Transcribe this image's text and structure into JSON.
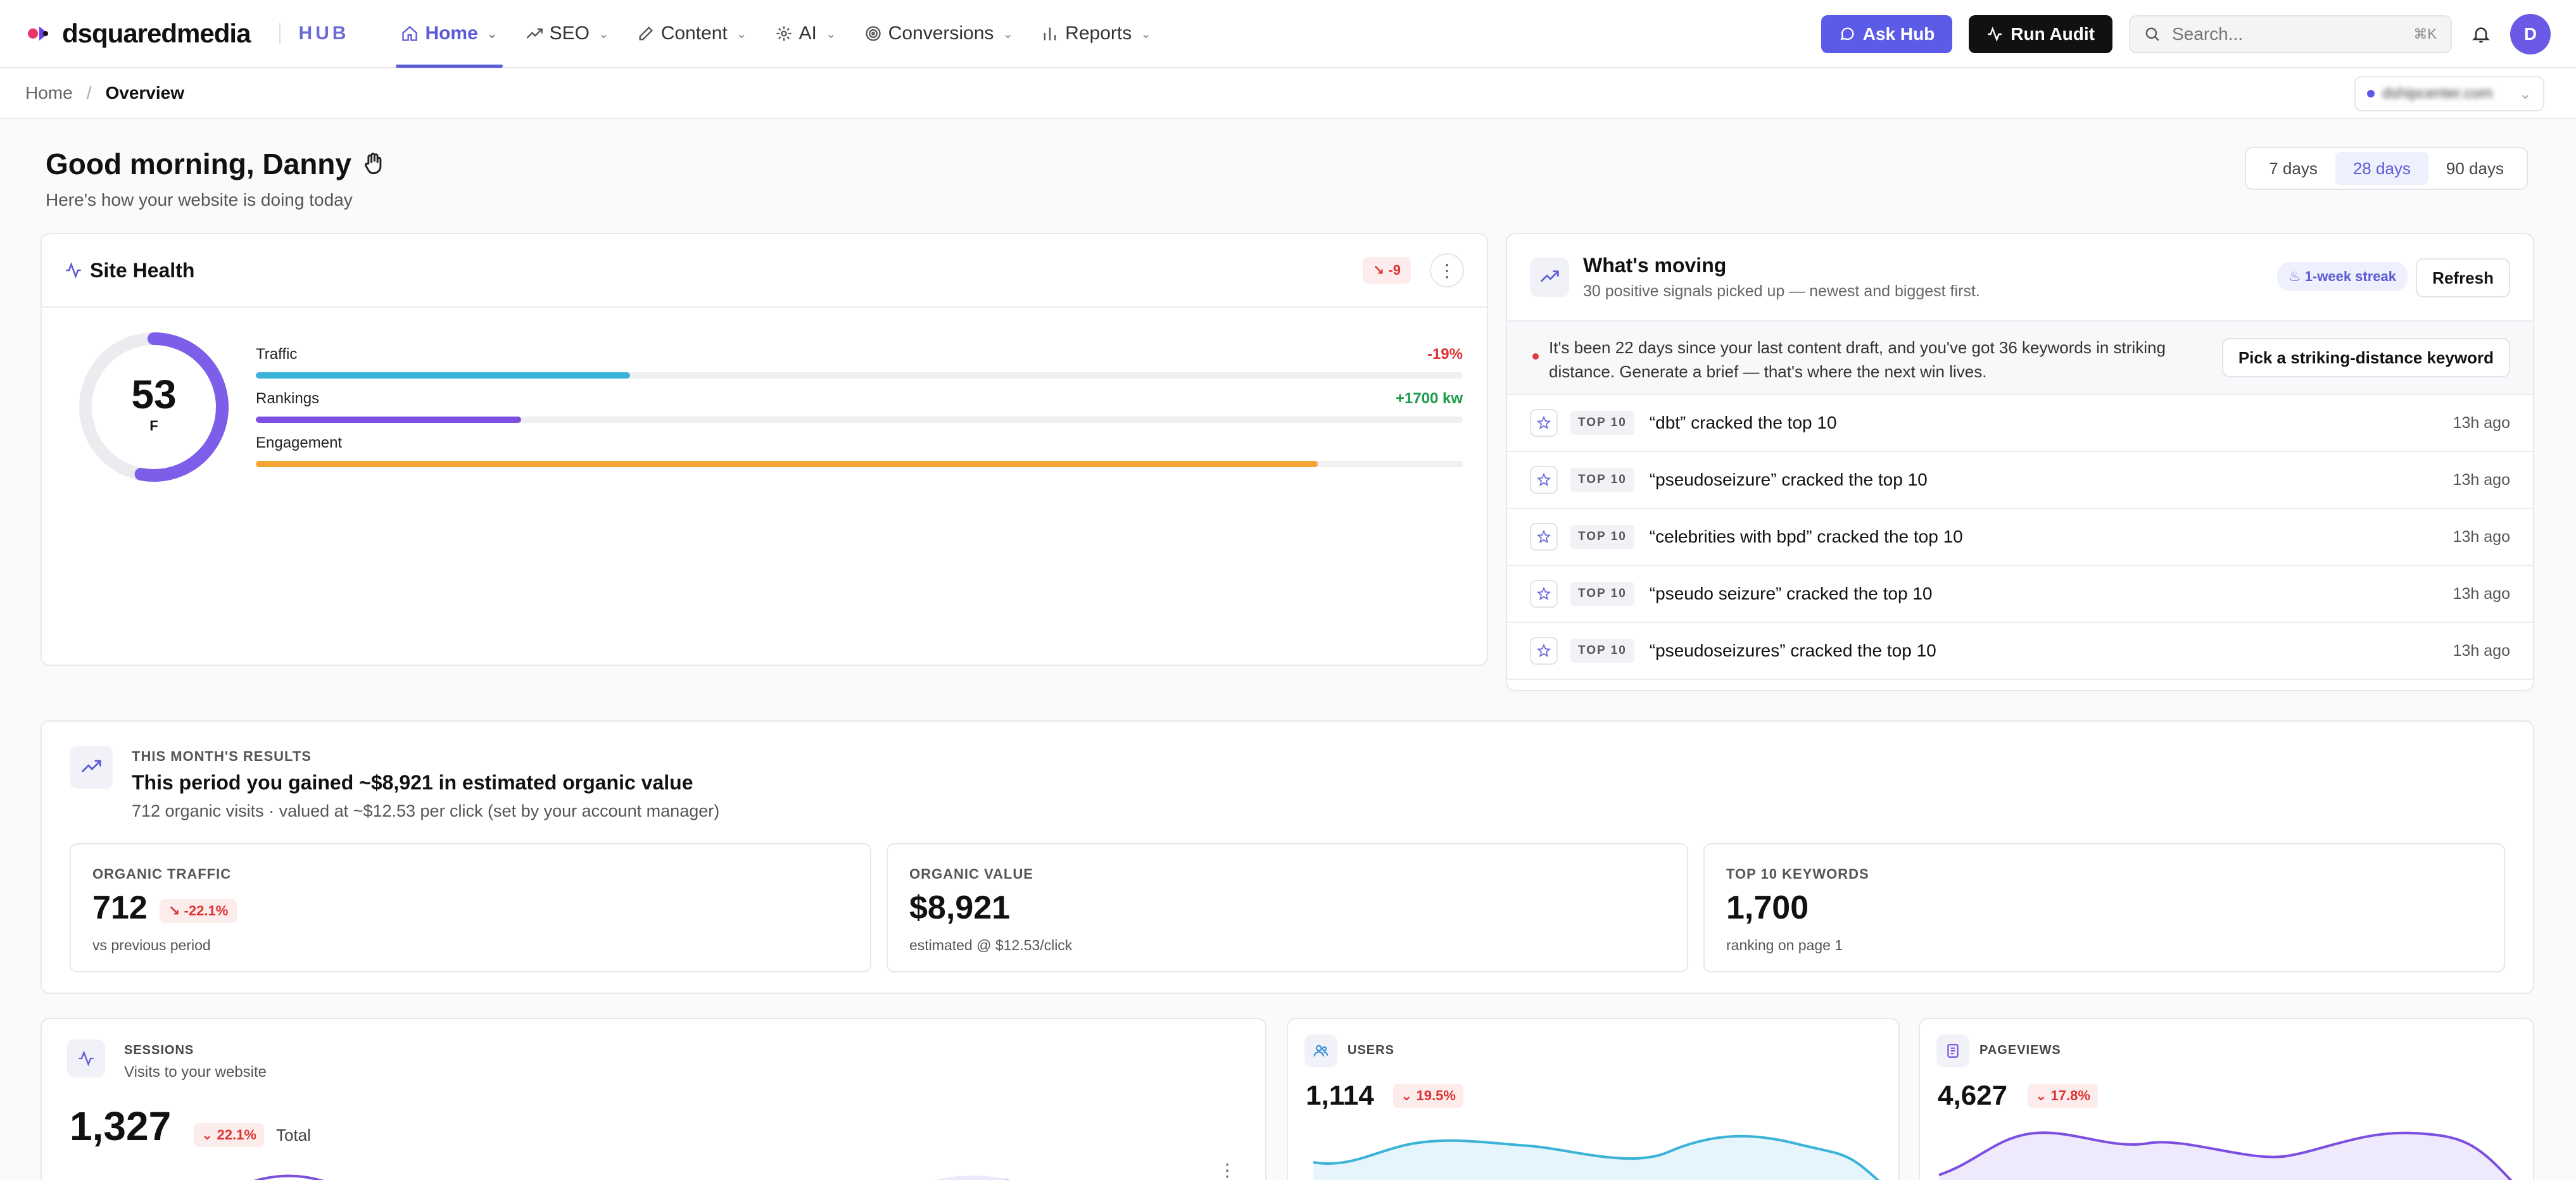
{
  "header": {
    "logo_text": "dsquaredmedia",
    "hub_label": "HUB",
    "nav": [
      {
        "label": "Home",
        "active": true,
        "icon": "home-icon"
      },
      {
        "label": "SEO",
        "active": false,
        "icon": "trend-icon"
      },
      {
        "label": "Content",
        "active": false,
        "icon": "pencil-icon"
      },
      {
        "label": "AI",
        "active": false,
        "icon": "sparkle-icon"
      },
      {
        "label": "Conversions",
        "active": false,
        "icon": "target-icon"
      },
      {
        "label": "Reports",
        "active": false,
        "icon": "bar-chart-icon"
      }
    ],
    "ask_hub_label": "Ask Hub",
    "run_audit_label": "Run Audit",
    "search_placeholder": "Search...",
    "search_shortcut": "⌘K",
    "avatar_initial": "D"
  },
  "breadcrumb": {
    "home": "Home",
    "separator": "/",
    "current": "Overview"
  },
  "site_selector": {
    "value": "dshipcenter.com"
  },
  "greeting": {
    "title": "Good morning, Danny",
    "subtitle": "Here's how your website is doing today"
  },
  "range": {
    "options": [
      "7 days",
      "28 days",
      "90 days"
    ],
    "selected": "28 days"
  },
  "site_health": {
    "title": "Site Health",
    "badge": "-9",
    "score": "53",
    "grade": "F",
    "score_fraction": 0.53,
    "metrics": [
      {
        "label": "Traffic",
        "change": "-19%",
        "trend": "neg",
        "level": 0.31,
        "color": "#3bb3d9"
      },
      {
        "label": "Rankings",
        "change": "+1700 kw",
        "trend": "pos",
        "level": 0.22,
        "color": "#7c4fe0"
      },
      {
        "label": "Engagement",
        "change": "",
        "trend": "none",
        "level": 0.88,
        "color": "#f3a533"
      }
    ]
  },
  "whats_moving": {
    "title": "What's moving",
    "subtitle": "30 positive signals picked up — newest and biggest first.",
    "streak": "1-week streak",
    "refresh_label": "Refresh",
    "alert_text": "It's been 22 days since your last content draft, and you've got 36 keywords in striking distance. Generate a brief — that's where the next win lives.",
    "alert_cta": "Pick a striking-distance keyword",
    "items": [
      {
        "tag": "TOP 10",
        "title": "“dbt” cracked the top 10",
        "time": "13h ago"
      },
      {
        "tag": "TOP 10",
        "title": "“pseudoseizure” cracked the top 10",
        "time": "13h ago"
      },
      {
        "tag": "TOP 10",
        "title": "“celebrities with bpd” cracked the top 10",
        "time": "13h ago"
      },
      {
        "tag": "TOP 10",
        "title": "“pseudo seizure” cracked the top 10",
        "time": "13h ago"
      },
      {
        "tag": "TOP 10",
        "title": "“pseudoseizures” cracked the top 10",
        "time": "13h ago"
      }
    ]
  },
  "results": {
    "eyebrow": "THIS MONTH'S RESULTS",
    "title": "This period you gained ~$8,921 in estimated organic value",
    "subtitle": "712 organic visits · valued at ~$12.53 per click (set by your account manager)",
    "kpis": [
      {
        "label": "ORGANIC TRAFFIC",
        "value": "712",
        "delta": "-22.1%",
        "note": "vs previous period"
      },
      {
        "label": "ORGANIC VALUE",
        "value": "$8,921",
        "delta": "",
        "note": "estimated @ $12.53/click"
      },
      {
        "label": "TOP 10 KEYWORDS",
        "value": "1,700",
        "delta": "",
        "note": "ranking on page 1"
      }
    ]
  },
  "sessions": {
    "label": "SESSIONS",
    "subtitle": "Visits to your website",
    "value": "1,327",
    "delta": "22.1%",
    "total_label": "Total"
  },
  "users": {
    "label": "USERS",
    "value": "1,114",
    "delta": "19.5%"
  },
  "pageviews": {
    "label": "PAGEVIEWS",
    "value": "4,627",
    "delta": "17.8%"
  },
  "colors": {
    "accent": "#5b5bd6",
    "users_line": "#3bb3d9",
    "pageviews_line": "#7c4fe0"
  }
}
